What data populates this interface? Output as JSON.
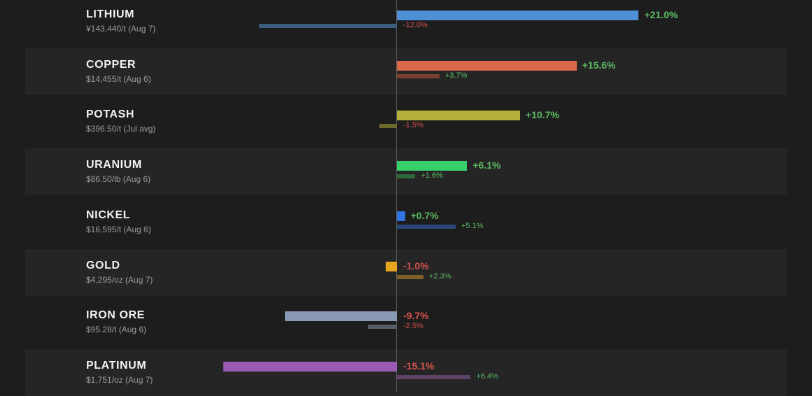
{
  "chart_data": {
    "type": "bar",
    "orientation": "horizontal",
    "grid": false,
    "legend": "none",
    "colors": {
      "positive": "#5dbb63",
      "negative": "#d9534f"
    },
    "categories": [
      "LITHIUM",
      "COPPER",
      "POTASH",
      "URANIUM",
      "NICKEL",
      "GOLD",
      "IRON ORE",
      "PLATINUM"
    ],
    "rows": [
      {
        "name": "LITHIUM",
        "price": "¥143,440/t  (Aug 7)",
        "value": 21.0,
        "value_label": "+21.0%",
        "sub_value": -12.0,
        "sub_label": "-12.0%",
        "color": "#4f8fd6",
        "sub_color": "#3b5d7e"
      },
      {
        "name": "COPPER",
        "price": "$14,455/t  (Aug 6)",
        "value": 15.6,
        "value_label": "+15.6%",
        "sub_value": 3.7,
        "sub_label": "+3.7%",
        "color": "#d9674a",
        "sub_color": "#7a4030"
      },
      {
        "name": "POTASH",
        "price": "$396.50/t  (Jul avg)",
        "value": 10.7,
        "value_label": "+10.7%",
        "sub_value": -1.5,
        "sub_label": "-1.5%",
        "color": "#b3b03a",
        "sub_color": "#6d6a2e"
      },
      {
        "name": "URANIUM",
        "price": "$86.50/lb  (Aug 6)",
        "value": 6.1,
        "value_label": "+6.1%",
        "sub_value": 1.6,
        "sub_label": "+1.6%",
        "color": "#37cf6a",
        "sub_color": "#2c6a3e"
      },
      {
        "name": "NICKEL",
        "price": "$16,595/t  (Aug 6)",
        "value": 0.7,
        "value_label": "+0.7%",
        "sub_value": 5.1,
        "sub_label": "+5.1%",
        "color": "#2f74e0",
        "sub_color": "#2a4878"
      },
      {
        "name": "GOLD",
        "price": "$4,295/oz  (Aug 7)",
        "value": -1.0,
        "value_label": "-1.0%",
        "sub_value": 2.3,
        "sub_label": "+2.3%",
        "color": "#e8a521",
        "sub_color": "#7d6228"
      },
      {
        "name": "IRON ORE",
        "price": "$95.28/t  (Aug 6)",
        "value": -9.7,
        "value_label": "-9.7%",
        "sub_value": -2.5,
        "sub_label": "-2.5%",
        "color": "#8a99b3",
        "sub_color": "#555d69"
      },
      {
        "name": "PLATINUM",
        "price": "$1,751/oz  (Aug 7)",
        "value": -15.1,
        "value_label": "-15.1%",
        "sub_value": 6.4,
        "sub_label": "+6.4%",
        "color": "#9b59b6",
        "sub_color": "#5d4466"
      }
    ]
  }
}
